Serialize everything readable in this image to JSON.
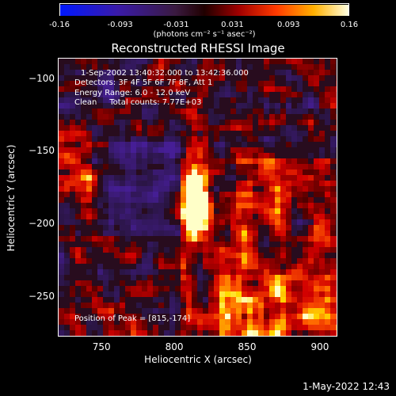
{
  "colorbar": {
    "tick_labels": [
      "-0.16",
      "-0.093",
      "-0.031",
      "0.031",
      "0.093",
      "0.16"
    ],
    "tick_values": [
      -0.16,
      -0.093,
      -0.031,
      0.031,
      0.093,
      0.16
    ],
    "range": [
      -0.16,
      0.16
    ],
    "units": "(photons cm⁻² s⁻¹ asec⁻²)"
  },
  "image": {
    "title": "Reconstructed RHESSI Image",
    "annotations": {
      "time": "1-Sep-2002 13:40:32.000 to 13:42:36.000",
      "detectors": "Detectors: 3F 4F 5F 6F 7F 8F, Att 1",
      "energy": "Energy Range: 6.0 - 12.0 keV",
      "clean": "Clean     Total counts: 7.77E+03",
      "peak": "Position of Peak = [815,-174]"
    },
    "x_axis": {
      "label": "Heliocentric X (arcsec)",
      "range": [
        720,
        912
      ],
      "ticks": [
        750,
        800,
        850,
        900
      ],
      "tick_labels": [
        "750",
        "800",
        "850",
        "900"
      ]
    },
    "y_axis": {
      "label": "Heliocentric Y (arcsec)",
      "range": [
        -278,
        -86
      ],
      "ticks": [
        -100,
        -150,
        -200,
        -250
      ],
      "tick_labels": [
        "−100",
        "−150",
        "−200",
        "−250"
      ]
    },
    "peak": {
      "x": 815,
      "y": -174
    }
  },
  "footer": {
    "timestamp": "1-May-2022 12:43"
  }
}
